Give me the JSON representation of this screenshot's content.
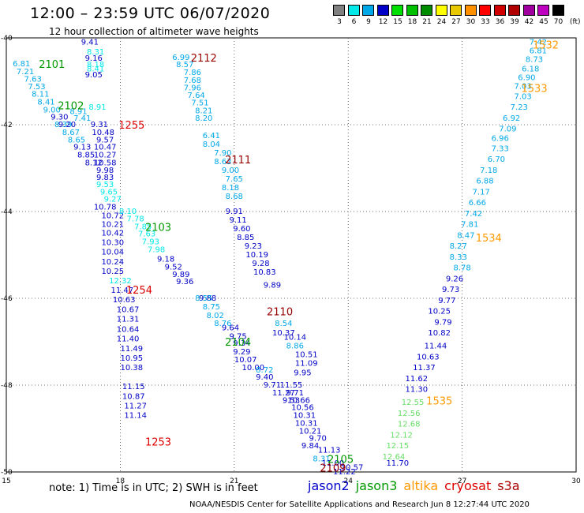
{
  "title": "12:00 – 23:59 UTC 06/07/2020",
  "subtitle": "12 hour collection of altimeter wave heights",
  "legend": {
    "unit": "(ft)",
    "bins": [
      {
        "label": "3",
        "color": "#808080"
      },
      {
        "label": "6",
        "color": "#00e8e8"
      },
      {
        "label": "9",
        "color": "#00a8e8"
      },
      {
        "label": "12",
        "color": "#0000c8"
      },
      {
        "label": "15",
        "color": "#00e000"
      },
      {
        "label": "18",
        "color": "#00c000"
      },
      {
        "label": "21",
        "color": "#008c00"
      },
      {
        "label": "24",
        "color": "#ffff00"
      },
      {
        "label": "27",
        "color": "#e8c800"
      },
      {
        "label": "30",
        "color": "#ff9000"
      },
      {
        "label": "33",
        "color": "#ff0000"
      },
      {
        "label": "36",
        "color": "#d00000"
      },
      {
        "label": "39",
        "color": "#b00000"
      },
      {
        "label": "42",
        "color": "#a000a0"
      },
      {
        "label": "45",
        "color": "#c000c0"
      },
      {
        "label": "70",
        "color": "#000000"
      }
    ]
  },
  "note": "note: 1) Time is in UTC; 2) SWH is in feet",
  "satellites": [
    {
      "name": "jason2",
      "color": "#0000cc"
    },
    {
      "name": "jason3",
      "color": "#009900"
    },
    {
      "name": "altika",
      "color": "#ff9900"
    },
    {
      "name": "cryosat",
      "color": "#dd0000"
    },
    {
      "name": "s3a",
      "color": "#aa0000"
    }
  ],
  "footer": "NOAA/NESDIS Center for Satellite Applications and Research   Jun  8 12:27:44 UTC 2020",
  "chart_data": {
    "type": "scatter",
    "x_range": [
      15,
      30
    ],
    "y_range": [
      -50,
      -40
    ],
    "x_ticks": [
      "15",
      "18",
      "21",
      "24",
      "27",
      "30"
    ],
    "y_ticks": [
      "-40",
      "-42",
      "-44",
      "-46",
      "-48",
      "-50"
    ],
    "grid": true,
    "pass_labels": [
      {
        "text": "2101",
        "x": 16.2,
        "y": -40.6,
        "color": "#009900"
      },
      {
        "text": "2102",
        "x": 16.7,
        "y": -41.55,
        "color": "#009900"
      },
      {
        "text": "2112",
        "x": 20.2,
        "y": -40.45,
        "color": "#990000"
      },
      {
        "text": "1255",
        "x": 18.3,
        "y": -42.0,
        "color": "#dd0000"
      },
      {
        "text": "2111",
        "x": 21.1,
        "y": -42.8,
        "color": "#990000"
      },
      {
        "text": "2103",
        "x": 19.0,
        "y": -44.35,
        "color": "#009900"
      },
      {
        "text": "1254",
        "x": 18.5,
        "y": -45.8,
        "color": "#dd0000"
      },
      {
        "text": "2110",
        "x": 22.2,
        "y": -46.3,
        "color": "#990000"
      },
      {
        "text": "2104",
        "x": 21.1,
        "y": -47.0,
        "color": "#009900"
      },
      {
        "text": "1253",
        "x": 19.0,
        "y": -49.3,
        "color": "#dd0000"
      },
      {
        "text": "2105",
        "x": 23.8,
        "y": -49.7,
        "color": "#009900"
      },
      {
        "text": "2109",
        "x": 23.6,
        "y": -49.9,
        "color": "#990000"
      },
      {
        "text": "1532",
        "x": 29.2,
        "y": -40.15,
        "color": "#ff9900"
      },
      {
        "text": "1533",
        "x": 28.9,
        "y": -41.15,
        "color": "#ff9900"
      },
      {
        "text": "1534",
        "x": 27.7,
        "y": -44.6,
        "color": "#ff9900"
      },
      {
        "text": "1535",
        "x": 26.4,
        "y": -48.35,
        "color": "#ff9900"
      }
    ],
    "series": [
      {
        "color": "#00a8e8",
        "points": [
          [
            15.4,
            -40.6,
            "6.81"
          ],
          [
            15.5,
            -40.78,
            "7.21"
          ],
          [
            15.7,
            -40.95,
            "7.63"
          ],
          [
            15.8,
            -41.13,
            "7.53"
          ],
          [
            15.9,
            -41.3,
            "8.11"
          ],
          [
            16.05,
            -41.48,
            "8.41"
          ],
          [
            16.2,
            -41.66,
            "9.00"
          ],
          [
            16.9,
            -41.7,
            "8.91"
          ],
          [
            17.0,
            -41.85,
            "7.41"
          ],
          [
            16.5,
            -42.0,
            "8.39"
          ],
          [
            16.7,
            -42.18,
            "8.67"
          ],
          [
            16.85,
            -42.35,
            "8.65"
          ]
        ]
      },
      {
        "color": "#0000c8",
        "points": [
          [
            16.4,
            -41.83,
            "9.30"
          ],
          [
            16.6,
            -42.0,
            "9.20"
          ],
          [
            17.0,
            -42.52,
            "9.13"
          ],
          [
            17.1,
            -42.7,
            "8.85"
          ],
          [
            17.3,
            -42.88,
            "8.12"
          ]
        ]
      },
      {
        "color": "#0000c8",
        "points": [
          [
            17.2,
            -40.1,
            "9.41"
          ],
          [
            17.3,
            -40.47,
            "9.16"
          ],
          [
            17.3,
            -40.85,
            "9.05"
          ],
          [
            17.45,
            -42.0,
            "9.31"
          ],
          [
            17.55,
            -42.18,
            "10.48"
          ],
          [
            17.6,
            -42.35,
            "9.57"
          ],
          [
            17.6,
            -42.52,
            "10.47"
          ],
          [
            17.6,
            -42.7,
            "10.27"
          ],
          [
            17.6,
            -42.88,
            "10.58"
          ],
          [
            17.6,
            -43.05,
            "9.98"
          ],
          [
            17.6,
            -43.22,
            "9.83"
          ],
          [
            17.6,
            -43.9,
            "10.78"
          ],
          [
            17.8,
            -44.1,
            "10.72"
          ],
          [
            17.8,
            -44.3,
            "10.21"
          ],
          [
            17.8,
            -44.5,
            "10.42"
          ],
          [
            17.8,
            -44.72,
            "10.30"
          ],
          [
            17.8,
            -44.94,
            "10.04"
          ],
          [
            17.8,
            -45.16,
            "10.24"
          ],
          [
            17.8,
            -45.38,
            "10.25"
          ],
          [
            18.05,
            -45.82,
            "11.47"
          ],
          [
            18.1,
            -46.04,
            "10.63"
          ],
          [
            18.2,
            -46.26,
            "10.67"
          ],
          [
            18.2,
            -46.48,
            "11.31"
          ],
          [
            18.2,
            -46.72,
            "10.64"
          ],
          [
            18.2,
            -46.94,
            "11.40"
          ],
          [
            18.3,
            -47.16,
            "11.49"
          ],
          [
            18.3,
            -47.38,
            "10.95"
          ],
          [
            18.3,
            -47.6,
            "10.38"
          ],
          [
            18.35,
            -48.04,
            "11.15"
          ],
          [
            18.35,
            -48.26,
            "10.87"
          ],
          [
            18.4,
            -48.48,
            "11.27"
          ],
          [
            18.4,
            -48.7,
            "11.14"
          ]
        ]
      },
      {
        "color": "#00e8e8",
        "points": [
          [
            17.35,
            -40.33,
            "8.31"
          ],
          [
            17.35,
            -40.62,
            "8.18"
          ],
          [
            17.35,
            -40.72,
            "8.41"
          ],
          [
            17.4,
            -41.6,
            "8.91"
          ],
          [
            17.6,
            -43.38,
            "9.53"
          ],
          [
            17.7,
            -43.55,
            "9.65"
          ],
          [
            17.8,
            -43.72,
            "9.27"
          ],
          [
            18.2,
            -44.0,
            "8.10"
          ],
          [
            18.4,
            -44.17,
            "7.78"
          ],
          [
            18.6,
            -44.35,
            "7.85"
          ],
          [
            18.7,
            -44.52,
            "7.63"
          ],
          [
            18.8,
            -44.7,
            "7.93"
          ],
          [
            18.95,
            -44.88,
            "7.98"
          ],
          [
            18.0,
            -45.6,
            "12.32"
          ]
        ]
      },
      {
        "color": "#0000c8",
        "points": [
          [
            19.2,
            -45.1,
            "9.18"
          ],
          [
            19.4,
            -45.28,
            "9.52"
          ],
          [
            19.6,
            -45.45,
            "9.89"
          ],
          [
            19.7,
            -45.62,
            "9.36"
          ],
          [
            20.3,
            -46.0,
            "9.88"
          ],
          [
            20.9,
            -46.68,
            "9.64"
          ],
          [
            21.1,
            -46.88,
            "9.75"
          ],
          [
            21.2,
            -47.04,
            "9.34"
          ],
          [
            21.2,
            -47.24,
            "9.29"
          ],
          [
            21.3,
            -47.42,
            "10.07"
          ],
          [
            21.5,
            -47.6,
            "10.00"
          ],
          [
            21.8,
            -47.82,
            "9.40"
          ],
          [
            22.0,
            -48.0,
            "9.71"
          ],
          [
            22.5,
            -48.0,
            "11.55"
          ],
          [
            22.3,
            -48.18,
            "11.27"
          ],
          [
            22.6,
            -48.18,
            "9.71"
          ],
          [
            22.5,
            -48.35,
            "9.53"
          ],
          [
            22.7,
            -48.35,
            "10.66"
          ],
          [
            22.8,
            -48.52,
            "10.56"
          ],
          [
            22.85,
            -48.7,
            "10.31"
          ],
          [
            22.9,
            -48.88,
            "10.31"
          ],
          [
            23.0,
            -49.06,
            "10.21"
          ],
          [
            23.2,
            -49.23,
            "9.70"
          ],
          [
            23.0,
            -49.4,
            "9.84"
          ],
          [
            23.9,
            -50.0,
            "11.22"
          ]
        ]
      },
      {
        "color": "#00a8e8",
        "points": [
          [
            19.6,
            -40.45,
            "6.99"
          ],
          [
            19.7,
            -40.62,
            "8.57"
          ],
          [
            19.9,
            -40.8,
            "7.86"
          ],
          [
            19.9,
            -40.98,
            "7.68"
          ],
          [
            19.9,
            -41.15,
            "7.96"
          ],
          [
            20.0,
            -41.33,
            "7.64"
          ],
          [
            20.1,
            -41.5,
            "7.51"
          ],
          [
            20.2,
            -41.68,
            "8.21"
          ],
          [
            20.2,
            -41.85,
            "8.20"
          ],
          [
            20.4,
            -42.25,
            "6.41"
          ],
          [
            20.4,
            -42.45,
            "8.04"
          ],
          [
            20.7,
            -42.65,
            "7.90"
          ],
          [
            20.7,
            -42.85,
            "8.63"
          ],
          [
            20.9,
            -43.05,
            "9.00"
          ],
          [
            21.0,
            -43.25,
            "7.65"
          ],
          [
            20.9,
            -43.45,
            "8.18"
          ],
          [
            21.0,
            -43.65,
            "8.68"
          ],
          [
            20.2,
            -46.0,
            "8.55"
          ],
          [
            20.4,
            -46.2,
            "8.75"
          ],
          [
            20.5,
            -46.4,
            "8.02"
          ],
          [
            20.7,
            -46.58,
            "8.76"
          ],
          [
            21.8,
            -47.65,
            "8.72"
          ],
          [
            22.3,
            -46.58,
            "8.54"
          ],
          [
            22.6,
            -47.1,
            "8.86"
          ],
          [
            23.3,
            -49.7,
            "8.31"
          ]
        ]
      },
      {
        "color": "#0000c8",
        "points": [
          [
            21.0,
            -44.0,
            "9.91"
          ],
          [
            21.1,
            -44.2,
            "9.11"
          ],
          [
            21.2,
            -44.4,
            "9.60"
          ],
          [
            21.3,
            -44.6,
            "8.85"
          ],
          [
            21.5,
            -44.8,
            "9.23"
          ],
          [
            21.6,
            -45.0,
            "10.19"
          ],
          [
            21.7,
            -45.2,
            "9.28"
          ],
          [
            21.8,
            -45.4,
            "10.83"
          ],
          [
            22.0,
            -45.7,
            "9.89"
          ],
          [
            22.3,
            -46.8,
            "10.37"
          ],
          [
            22.6,
            -46.9,
            "10.14"
          ],
          [
            22.9,
            -47.3,
            "10.51"
          ],
          [
            22.9,
            -47.5,
            "11.09"
          ],
          [
            22.8,
            -47.72,
            "9.95"
          ],
          [
            23.5,
            -49.5,
            "11.13"
          ],
          [
            23.6,
            -49.8,
            "11.00"
          ],
          [
            24.1,
            -49.9,
            "10.57"
          ]
        ]
      },
      {
        "color": "#00a8e8",
        "points": [
          [
            29.0,
            -40.1,
            "7.42"
          ],
          [
            29.0,
            -40.3,
            "6.81"
          ],
          [
            28.9,
            -40.5,
            "8.73"
          ],
          [
            28.8,
            -40.72,
            "6.18"
          ],
          [
            28.7,
            -40.92,
            "6.90"
          ],
          [
            28.6,
            -41.12,
            "7.03"
          ],
          [
            28.6,
            -41.35,
            "7.03"
          ],
          [
            28.5,
            -41.6,
            "7.23"
          ],
          [
            28.3,
            -41.85,
            "6.92"
          ],
          [
            28.2,
            -42.1,
            "7.09"
          ],
          [
            28.0,
            -42.32,
            "6.96"
          ],
          [
            28.0,
            -42.55,
            "7.33"
          ],
          [
            27.9,
            -42.8,
            "6.70"
          ],
          [
            27.7,
            -43.05,
            "7.18"
          ],
          [
            27.6,
            -43.3,
            "6.88"
          ],
          [
            27.5,
            -43.55,
            "7.17"
          ],
          [
            27.4,
            -43.8,
            "6.66"
          ],
          [
            27.3,
            -44.05,
            "7.42"
          ],
          [
            27.2,
            -44.3,
            "7.81"
          ],
          [
            27.1,
            -44.55,
            "8.47"
          ],
          [
            26.9,
            -44.8,
            "8.27"
          ],
          [
            26.9,
            -45.05,
            "8.33"
          ],
          [
            27.0,
            -45.3,
            "8.78"
          ]
        ]
      },
      {
        "color": "#0000c8",
        "points": [
          [
            26.8,
            -45.55,
            "9.26"
          ],
          [
            26.7,
            -45.8,
            "9.73"
          ],
          [
            26.6,
            -46.05,
            "9.77"
          ],
          [
            26.4,
            -46.3,
            "10.25"
          ],
          [
            26.5,
            -46.55,
            "9.79"
          ],
          [
            26.4,
            -46.8,
            "10.82"
          ],
          [
            26.3,
            -47.1,
            "11.44"
          ],
          [
            26.1,
            -47.35,
            "10.63"
          ],
          [
            26.0,
            -47.6,
            "11.37"
          ],
          [
            25.8,
            -47.85,
            "11.62"
          ],
          [
            25.8,
            -48.1,
            "11.30"
          ],
          [
            25.3,
            -49.8,
            "11.70"
          ]
        ]
      },
      {
        "color": "#66dd66",
        "points": [
          [
            25.7,
            -48.4,
            "12.55"
          ],
          [
            25.6,
            -48.65,
            "12.56"
          ],
          [
            25.6,
            -48.9,
            "12.68"
          ],
          [
            25.4,
            -49.15,
            "12.12"
          ],
          [
            25.3,
            -49.4,
            "12.15"
          ],
          [
            25.2,
            -49.65,
            "12.64"
          ]
        ]
      }
    ]
  }
}
